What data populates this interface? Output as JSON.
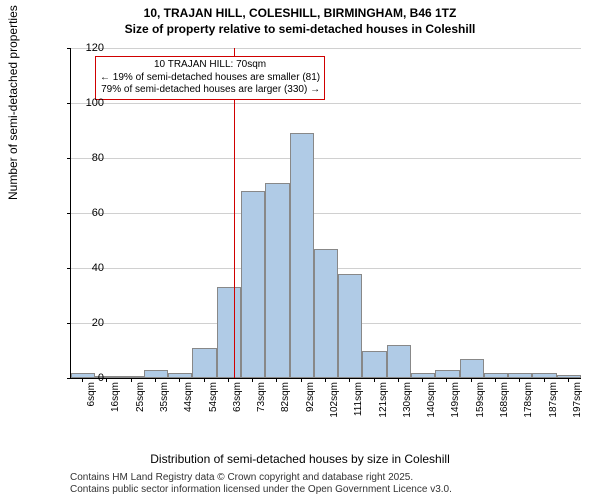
{
  "title": {
    "line1": "10, TRAJAN HILL, COLESHILL, BIRMINGHAM, B46 1TZ",
    "line2": "Size of property relative to semi-detached houses in Coleshill"
  },
  "chart": {
    "type": "histogram",
    "x_categories": [
      "6sqm",
      "16sqm",
      "25sqm",
      "35sqm",
      "44sqm",
      "54sqm",
      "63sqm",
      "73sqm",
      "82sqm",
      "92sqm",
      "102sqm",
      "111sqm",
      "121sqm",
      "130sqm",
      "140sqm",
      "149sqm",
      "159sqm",
      "168sqm",
      "178sqm",
      "187sqm",
      "197sqm"
    ],
    "values": [
      2,
      0,
      0,
      3,
      2,
      11,
      33,
      68,
      71,
      89,
      47,
      38,
      10,
      12,
      2,
      3,
      7,
      2,
      2,
      2,
      1
    ],
    "bar_color": "#b0cbe6",
    "bar_border_color": "#888888",
    "background_color": "#ffffff",
    "grid_color": "#d0d0d0",
    "ylim": [
      0,
      120
    ],
    "ytick_step": 20,
    "yticks": [
      0,
      20,
      40,
      60,
      80,
      100,
      120
    ],
    "xlabel": "Distribution of semi-detached houses by size in Coleshill",
    "ylabel": "Number of semi-detached properties",
    "label_fontsize": 12,
    "tick_fontsize": 11,
    "bar_width_ratio": 1.0,
    "marker": {
      "position_index": 6.7,
      "color": "#d00000"
    },
    "annotation": {
      "line1": "10 TRAJAN HILL: 70sqm",
      "line2": "← 19% of semi-detached houses are smaller (81)",
      "line3": "79% of semi-detached houses are larger (330) →",
      "border_color": "#d00000",
      "fontsize": 10
    }
  },
  "footer": {
    "line1": "Contains HM Land Registry data © Crown copyright and database right 2025.",
    "line2": "Contains public sector information licensed under the Open Government Licence v3.0."
  }
}
